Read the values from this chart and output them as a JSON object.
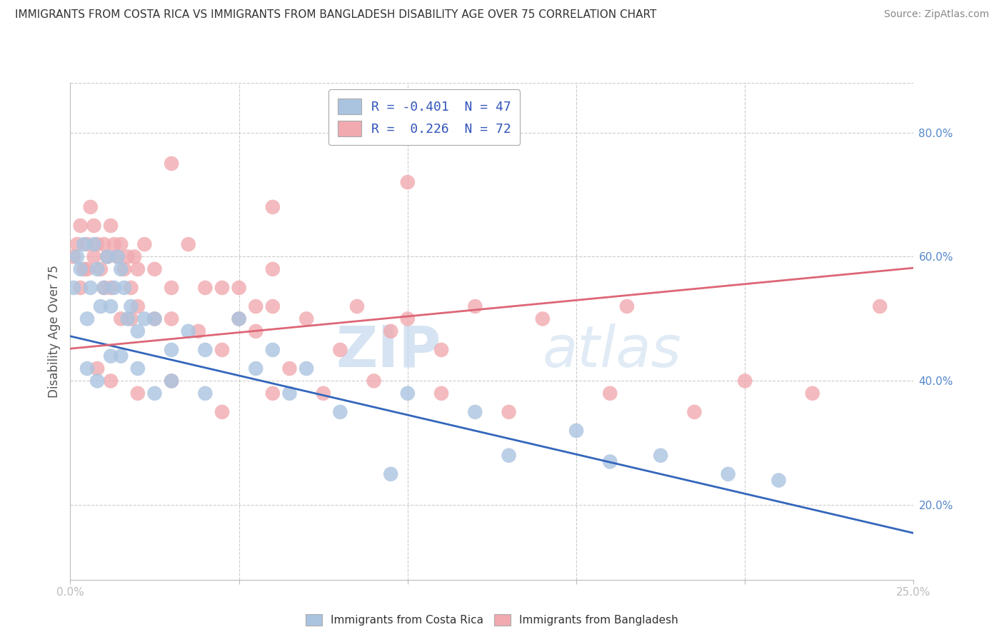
{
  "title": "IMMIGRANTS FROM COSTA RICA VS IMMIGRANTS FROM BANGLADESH DISABILITY AGE OVER 75 CORRELATION CHART",
  "source": "Source: ZipAtlas.com",
  "ylabel": "Disability Age Over 75",
  "xlabel": "",
  "xlim": [
    0.0,
    0.25
  ],
  "ylim": [
    0.08,
    0.88
  ],
  "xticks": [
    0.0,
    0.05,
    0.1,
    0.15,
    0.2,
    0.25
  ],
  "xticklabels": [
    "0.0%",
    "",
    "",
    "",
    "",
    "25.0%"
  ],
  "yticks_right": [
    0.2,
    0.4,
    0.6,
    0.8
  ],
  "yticklabels_right": [
    "20.0%",
    "40.0%",
    "60.0%",
    "80.0%"
  ],
  "legend_cr_label": "R = -0.401  N = 47",
  "legend_bd_label": "R =  0.226  N = 72",
  "watermark_zip": "ZIP",
  "watermark_atlas": "atlas",
  "watermark_color": "#c8d8e8",
  "background_color": "#ffffff",
  "grid_color": "#cccccc",
  "title_color": "#404040",
  "axis_label_color": "#5588cc",
  "costa_rica_color": "#aac4e0",
  "bangladesh_color": "#f0aab0",
  "trend_cr_color": "#3366bb",
  "trend_bd_color": "#dd6677",
  "trend_cr_x0": 0.0,
  "trend_cr_y0": 0.472,
  "trend_cr_x1": 0.25,
  "trend_cr_y1": 0.155,
  "trend_bd_x0": 0.0,
  "trend_bd_y0": 0.452,
  "trend_bd_x1": 0.25,
  "trend_bd_y1": 0.582,
  "cr_points_x": [
    0.001,
    0.002,
    0.003,
    0.004,
    0.005,
    0.006,
    0.007,
    0.008,
    0.009,
    0.01,
    0.011,
    0.012,
    0.013,
    0.014,
    0.015,
    0.016,
    0.017,
    0.018,
    0.02,
    0.022,
    0.025,
    0.03,
    0.035,
    0.04,
    0.05,
    0.06,
    0.07,
    0.005,
    0.008,
    0.012,
    0.015,
    0.02,
    0.025,
    0.03,
    0.04,
    0.055,
    0.065,
    0.08,
    0.1,
    0.12,
    0.15,
    0.175,
    0.195,
    0.095,
    0.13,
    0.16,
    0.21
  ],
  "cr_points_y": [
    0.55,
    0.6,
    0.58,
    0.62,
    0.5,
    0.55,
    0.62,
    0.58,
    0.52,
    0.55,
    0.6,
    0.52,
    0.55,
    0.6,
    0.58,
    0.55,
    0.5,
    0.52,
    0.48,
    0.5,
    0.5,
    0.45,
    0.48,
    0.45,
    0.5,
    0.45,
    0.42,
    0.42,
    0.4,
    0.44,
    0.44,
    0.42,
    0.38,
    0.4,
    0.38,
    0.42,
    0.38,
    0.35,
    0.38,
    0.35,
    0.32,
    0.28,
    0.25,
    0.25,
    0.28,
    0.27,
    0.24
  ],
  "bd_points_x": [
    0.001,
    0.002,
    0.003,
    0.004,
    0.005,
    0.006,
    0.007,
    0.008,
    0.009,
    0.01,
    0.011,
    0.012,
    0.013,
    0.014,
    0.015,
    0.016,
    0.017,
    0.018,
    0.019,
    0.02,
    0.022,
    0.025,
    0.03,
    0.035,
    0.04,
    0.045,
    0.05,
    0.055,
    0.06,
    0.003,
    0.005,
    0.007,
    0.01,
    0.012,
    0.015,
    0.018,
    0.02,
    0.025,
    0.03,
    0.038,
    0.045,
    0.055,
    0.065,
    0.08,
    0.095,
    0.11,
    0.05,
    0.06,
    0.07,
    0.085,
    0.1,
    0.12,
    0.14,
    0.165,
    0.008,
    0.012,
    0.02,
    0.03,
    0.045,
    0.06,
    0.075,
    0.09,
    0.11,
    0.13,
    0.16,
    0.185,
    0.2,
    0.22,
    0.24,
    0.03,
    0.06,
    0.1
  ],
  "bd_points_y": [
    0.6,
    0.62,
    0.65,
    0.58,
    0.62,
    0.68,
    0.65,
    0.62,
    0.58,
    0.62,
    0.6,
    0.65,
    0.62,
    0.6,
    0.62,
    0.58,
    0.6,
    0.55,
    0.6,
    0.58,
    0.62,
    0.58,
    0.55,
    0.62,
    0.55,
    0.55,
    0.55,
    0.52,
    0.58,
    0.55,
    0.58,
    0.6,
    0.55,
    0.55,
    0.5,
    0.5,
    0.52,
    0.5,
    0.5,
    0.48,
    0.45,
    0.48,
    0.42,
    0.45,
    0.48,
    0.45,
    0.5,
    0.52,
    0.5,
    0.52,
    0.5,
    0.52,
    0.5,
    0.52,
    0.42,
    0.4,
    0.38,
    0.4,
    0.35,
    0.38,
    0.38,
    0.4,
    0.38,
    0.35,
    0.38,
    0.35,
    0.4,
    0.38,
    0.52,
    0.75,
    0.68,
    0.72
  ]
}
